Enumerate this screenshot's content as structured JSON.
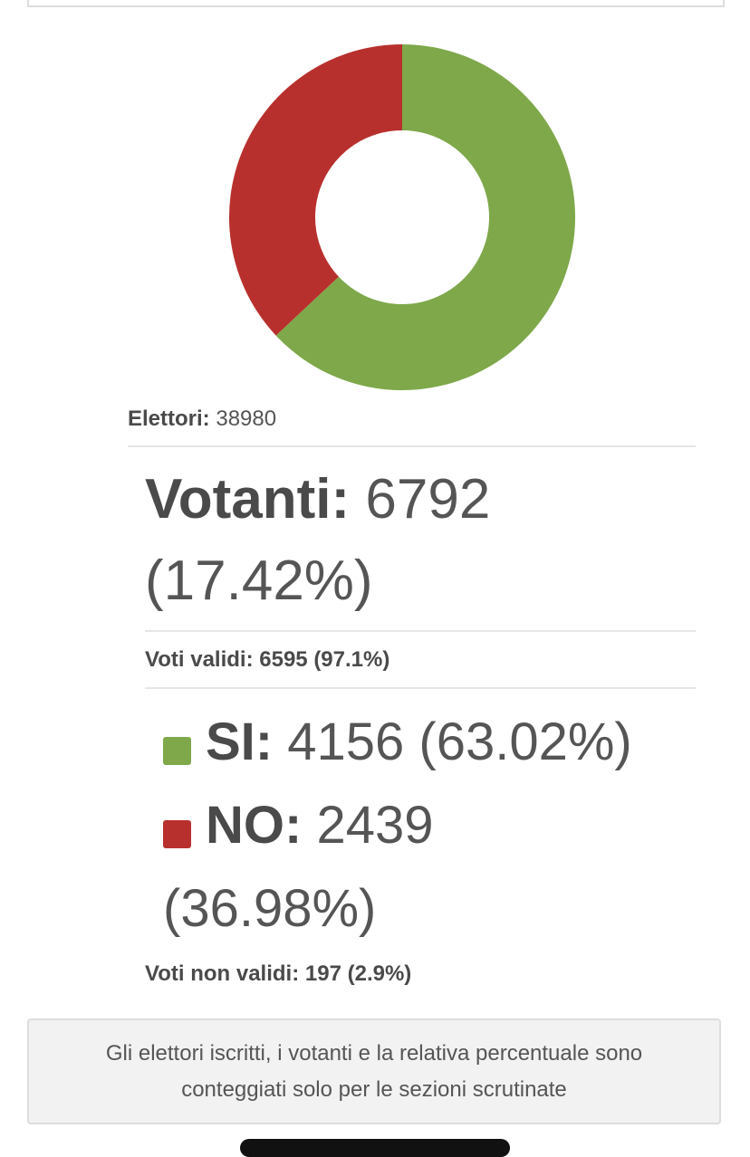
{
  "electors": {
    "label": "Elettori:",
    "value": 38980
  },
  "voters": {
    "label": "Votanti:",
    "value": 6792,
    "percent": "(17.42%)"
  },
  "valid": {
    "label": "Voti validi:",
    "value": 6595,
    "percent": "(97.1%)"
  },
  "results": [
    {
      "label": "SI:",
      "votes": 4156,
      "percent": "(63.02%)",
      "color": "#7ea84a"
    },
    {
      "label": "NO:",
      "votes": 2439,
      "percent": "(36.98%)",
      "color": "#b8302d"
    }
  ],
  "invalid": {
    "label": "Voti non validi:",
    "value": 197,
    "percent": "(2.9%)"
  },
  "note": "Gli elettori iscritti, i votanti e la relativa percentuale sono conteggiati solo per le sezioni scrutinate"
}
